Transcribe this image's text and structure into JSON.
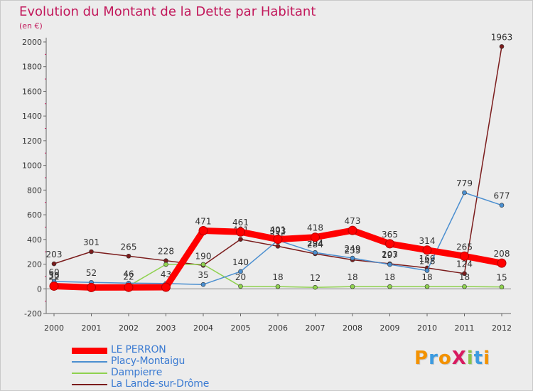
{
  "title": "Evolution du Montant de la Dette par Habitant",
  "subtitle": "(en €)",
  "brand": {
    "text": "ProXiti",
    "letter_colors": [
      "#f39200",
      "#3c9be0",
      "#f39200",
      "#d81b60",
      "#8bc34a",
      "#3c9be0",
      "#f39200"
    ]
  },
  "chart_data": {
    "type": "line",
    "title": "Evolution du Montant de la Dette par Habitant",
    "subtitle": "(en €)",
    "x": [
      "2000",
      "2001",
      "2002",
      "2003",
      "2004",
      "2005",
      "2006",
      "2007",
      "2008",
      "2009",
      "2010",
      "2011",
      "2012"
    ],
    "ylim": [
      -200,
      2000
    ],
    "yticks": [
      -200,
      0,
      200,
      400,
      600,
      800,
      1000,
      1200,
      1400,
      1600,
      1800,
      2000
    ],
    "grid": false,
    "legend_position": "bottom-left",
    "series": [
      {
        "name": "LE PERRON",
        "color": "#ff0000",
        "values": [
          22,
          11,
          12,
          13,
          471,
          461,
          401,
          418,
          473,
          365,
          314,
          265,
          208
        ],
        "labels": [
          "22",
          "",
          "",
          "",
          "471",
          "461",
          "401",
          "418",
          "473",
          "365",
          "314",
          "265",
          "208"
        ]
      },
      {
        "name": "Placy-Montaigu",
        "color": "#4b8fd0",
        "values": [
          60,
          52,
          46,
          43,
          35,
          140,
          393,
          294,
          249,
          197,
          148,
          779,
          677
        ],
        "labels": [
          "60",
          "52",
          "46",
          "43",
          "35",
          "140",
          "393",
          "294",
          "249",
          "197",
          "148",
          "779",
          "677"
        ]
      },
      {
        "name": "Dampierre",
        "color": "#8fd14f",
        "values": [
          30,
          20,
          22,
          198,
          198,
          20,
          18,
          12,
          18,
          18,
          18,
          18,
          15
        ],
        "labels": [
          "30",
          "",
          "22",
          "",
          "",
          "20",
          "18",
          "12",
          "18",
          "18",
          "18",
          "18",
          "15"
        ]
      },
      {
        "name": "La Lande-sur-Drôme",
        "color": "#7b1c1c",
        "values": [
          203,
          301,
          265,
          228,
          190,
          401,
          345,
          284,
          235,
          203,
          169,
          124,
          1963
        ],
        "labels": [
          "203",
          "301",
          "265",
          "228",
          "190",
          "401",
          "345",
          "284",
          "235",
          "203",
          "169",
          "124",
          "1963"
        ]
      }
    ]
  }
}
